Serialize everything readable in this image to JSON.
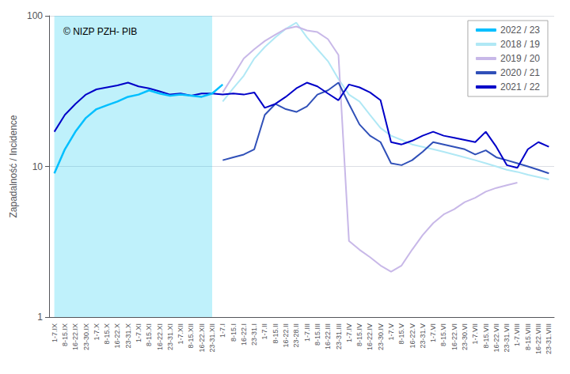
{
  "chart_data": {
    "type": "line",
    "y_label": "Zapadalność / Incidence",
    "annotation": "© NIZP PZH- PIB",
    "categories": [
      "1-7.IX",
      "8-15.IX",
      "16-22.IX",
      "23-30.IX",
      "1-7.X",
      "8-15.X",
      "16-22.X",
      "23-31.X",
      "1-7.XI",
      "8-15.XI",
      "16-22.XI",
      "23-31.XI",
      "1-7.XII",
      "8-15.XII",
      "16-22.XII",
      "23-31.XII",
      "1-7.I",
      "8-15.I",
      "16-22.I",
      "23-31.I",
      "1-7.II",
      "8-15.II",
      "16-22.II",
      "23-28.II",
      "1-7.III",
      "8-15.III",
      "16-22.III",
      "23-31.III",
      "1-7.IV",
      "8-15.IV",
      "16-22.IV",
      "23-30.IV",
      "1-7.V",
      "8-15.V",
      "16-22.V",
      "23-31.V",
      "1-7.VI",
      "8-15.VI",
      "16-22.VI",
      "23-30.VI",
      "1-7.VII",
      "8-15.VII",
      "16-22.VII",
      "23-31.VII",
      "1-7.VIII",
      "8-15.VIII",
      "16-22.VIII",
      "23-31.VIII"
    ],
    "series": [
      {
        "name": "2022 / 23",
        "color": "#00bfff",
        "values": [
          9.0,
          13.0,
          17.0,
          21.0,
          24.0,
          25.5,
          27.0,
          29.0,
          30.0,
          32.0,
          30.5,
          29.5,
          30.0,
          29.5,
          29.0,
          30.5,
          35.0,
          null,
          null,
          null,
          null,
          null,
          null,
          null,
          null,
          null,
          null,
          null,
          null,
          null,
          null,
          null,
          null,
          null,
          null,
          null,
          null,
          null,
          null,
          null,
          null,
          null,
          null,
          null,
          null,
          null,
          null,
          null
        ]
      },
      {
        "name": "2018 / 19",
        "color": "#b0e8f5",
        "values": [
          null,
          null,
          null,
          null,
          null,
          null,
          null,
          null,
          null,
          null,
          null,
          null,
          null,
          null,
          null,
          null,
          27.0,
          33.0,
          40.0,
          52.0,
          62.0,
          72.0,
          82.0,
          90.0,
          72.0,
          60.0,
          50.0,
          38.0,
          30.0,
          27.0,
          22.0,
          18.0,
          16.0,
          15.0,
          14.0,
          13.5,
          13.0,
          12.5,
          12.0,
          11.5,
          11.0,
          10.5,
          10.0,
          9.5,
          9.2,
          8.8,
          8.5,
          8.2
        ]
      },
      {
        "name": "2019 / 20",
        "color": "#c8b8e8",
        "values": [
          null,
          null,
          null,
          null,
          null,
          null,
          null,
          null,
          null,
          null,
          null,
          null,
          null,
          null,
          null,
          null,
          31.0,
          40.0,
          52.0,
          60.0,
          68.0,
          75.0,
          82.0,
          85.0,
          80.0,
          78.0,
          70.0,
          55.0,
          3.2,
          2.8,
          2.5,
          2.2,
          2.0,
          2.2,
          2.8,
          3.5,
          4.2,
          4.8,
          5.2,
          5.8,
          6.2,
          6.8,
          7.2,
          7.5,
          7.8,
          null,
          null,
          null
        ]
      },
      {
        "name": "2020 / 21",
        "color": "#3050b8",
        "values": [
          null,
          null,
          null,
          null,
          null,
          null,
          null,
          null,
          null,
          null,
          null,
          null,
          null,
          null,
          null,
          null,
          11.0,
          11.5,
          12.0,
          13.0,
          22.0,
          26.0,
          24.0,
          23.0,
          25.0,
          30.0,
          32.0,
          36.0,
          26.0,
          19.0,
          16.0,
          14.5,
          10.5,
          10.2,
          11.0,
          12.5,
          14.5,
          14.0,
          13.5,
          13.0,
          12.0,
          12.8,
          11.5,
          11.0,
          10.5,
          10.0,
          9.5,
          9.0
        ]
      },
      {
        "name": "2021 / 22",
        "color": "#0000c8",
        "values": [
          17.0,
          22.0,
          26.0,
          30.0,
          32.5,
          33.5,
          34.5,
          36.0,
          34.0,
          33.0,
          31.5,
          30.0,
          30.5,
          29.5,
          30.5,
          30.5,
          30.0,
          30.5,
          30.0,
          31.0,
          24.5,
          26.0,
          29.0,
          33.0,
          36.0,
          34.0,
          30.5,
          27.5,
          35.0,
          33.5,
          31.0,
          27.5,
          14.5,
          14.0,
          14.8,
          16.0,
          17.0,
          16.0,
          15.5,
          15.0,
          14.5,
          17.0,
          13.5,
          10.2,
          9.8,
          13.0,
          14.5,
          13.5
        ]
      }
    ],
    "log": "y",
    "ylim": [
      1.0,
      100.0
    ],
    "yticks": [
      1,
      10,
      100
    ],
    "grid": true,
    "legend": "upper right",
    "shaded_region": {
      "from": "1-7.IX",
      "to": "23-31.XII",
      "color": "#00c8f0"
    }
  }
}
